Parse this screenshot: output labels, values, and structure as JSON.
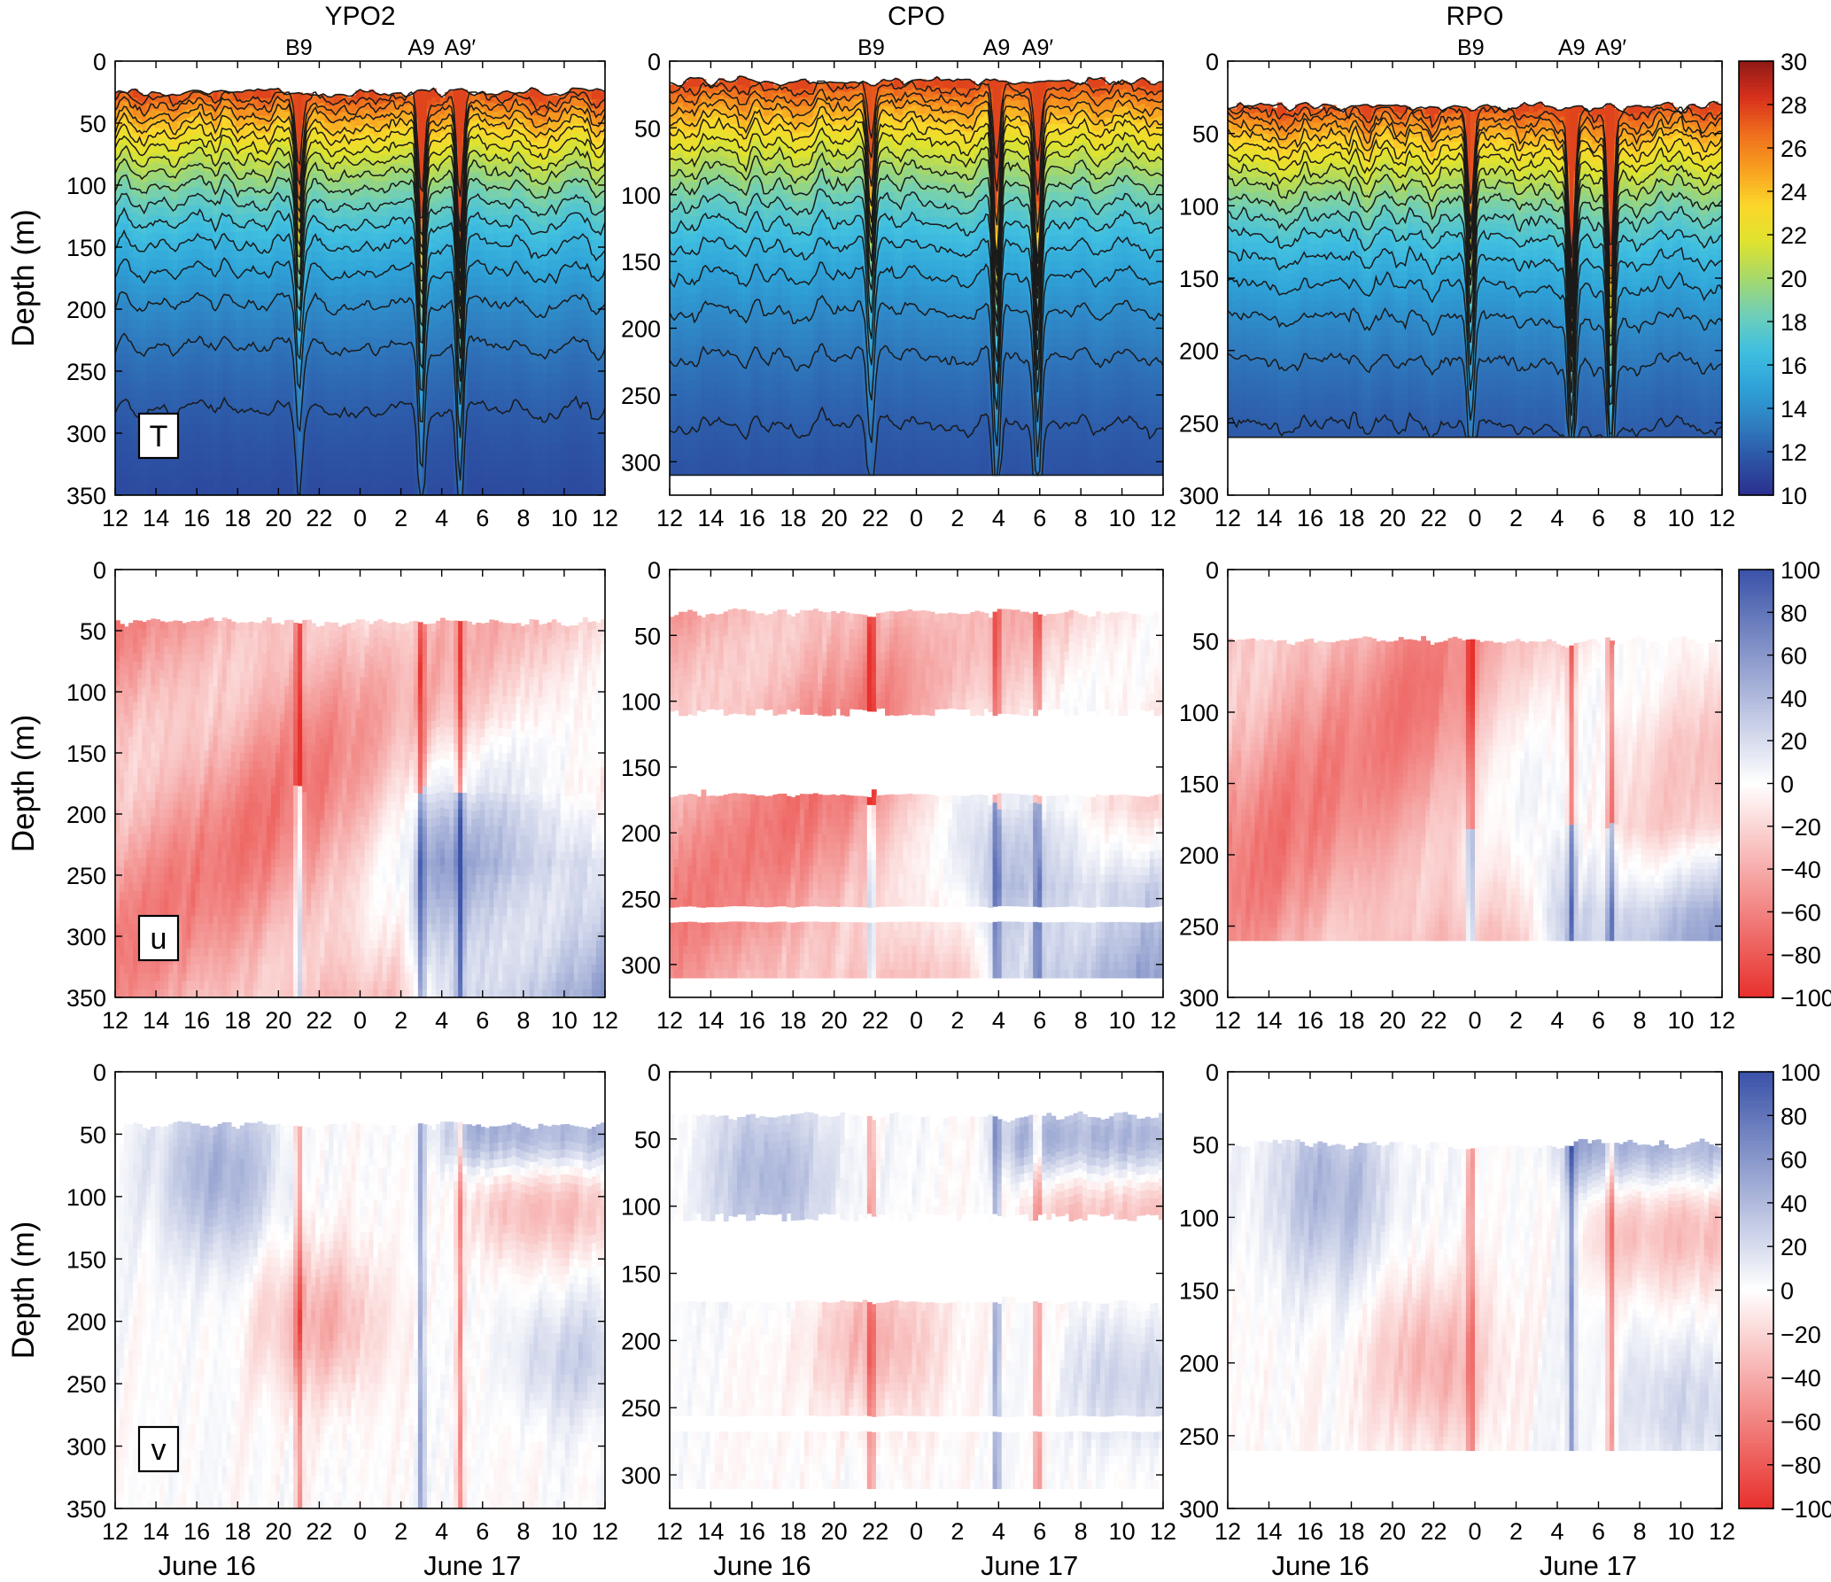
{
  "chart_data": {
    "type": "heatmap",
    "time_ticks": [
      "12",
      "14",
      "16",
      "18",
      "20",
      "22",
      "0",
      "2",
      "4",
      "6",
      "8",
      "10",
      "12"
    ],
    "date_labels": [
      "June 16",
      "June 17"
    ],
    "ylabel": "Depth (m)",
    "columns": [
      {
        "title": "YPO2",
        "events": [
          {
            "label": "B9",
            "t": 21.0
          },
          {
            "label": "A9",
            "t": 27.0
          },
          {
            "label": "A9′",
            "t": 28.9
          }
        ],
        "ylim": [
          0,
          350
        ],
        "yticks": [
          0,
          50,
          100,
          150,
          200,
          250,
          300,
          350
        ],
        "surface_depth": 25,
        "bottom_depth": 350,
        "u_gaps": [],
        "v_gaps": []
      },
      {
        "title": "CPO",
        "events": [
          {
            "label": "B9",
            "t": 21.8
          },
          {
            "label": "A9",
            "t": 27.9
          },
          {
            "label": "A9′",
            "t": 29.9
          }
        ],
        "ylim": [
          0,
          325
        ],
        "yticks": [
          0,
          50,
          100,
          150,
          200,
          250,
          300
        ],
        "surface_depth": 15,
        "bottom_depth": 310,
        "u_gaps": [
          [
            108,
            170
          ],
          [
            258,
            270
          ]
        ],
        "v_gaps": [
          [
            108,
            170
          ],
          [
            258,
            270
          ]
        ]
      },
      {
        "title": "RPO",
        "events": [
          {
            "label": "B9",
            "t": 23.8
          },
          {
            "label": "A9",
            "t": 28.7
          },
          {
            "label": "A9′",
            "t": 30.6
          }
        ],
        "ylim": [
          0,
          300
        ],
        "yticks": [
          0,
          50,
          100,
          150,
          200,
          250,
          300
        ],
        "surface_depth": 32,
        "bottom_depth": 260,
        "u_gaps": [],
        "v_gaps": []
      }
    ],
    "rows": [
      {
        "variable": "T",
        "panel_label": "T",
        "colorbar": {
          "min": 10,
          "max": 30,
          "ticks": [
            "30",
            "28",
            "26",
            "24",
            "22",
            "20",
            "18",
            "16",
            "14",
            "12",
            "10"
          ]
        },
        "contour_levels": [
          11,
          12,
          13,
          14,
          15,
          16,
          17,
          18,
          19,
          20,
          21,
          22,
          23,
          24,
          25,
          26,
          27,
          28,
          29
        ]
      },
      {
        "variable": "u",
        "panel_label": "u",
        "colorbar": {
          "min": -100,
          "max": 100,
          "ticks": [
            "100",
            "80",
            "60",
            "40",
            "20",
            "0",
            "−20",
            "−40",
            "−60",
            "−80",
            "−100"
          ]
        }
      },
      {
        "variable": "v",
        "panel_label": "v",
        "colorbar": {
          "min": -100,
          "max": 100,
          "ticks": [
            "100",
            "80",
            "60",
            "40",
            "20",
            "0",
            "−20",
            "−40",
            "−60",
            "−80",
            "−100"
          ]
        }
      }
    ],
    "colormaps": {
      "temperature": [
        "#2b2f8e",
        "#2d55a6",
        "#2f7fc1",
        "#2fa3d8",
        "#40bfe0",
        "#6fcfb8",
        "#a6d86a",
        "#dfe32e",
        "#fbd72a",
        "#f8a020",
        "#ef6d1d",
        "#d8301c",
        "#8e1a16"
      ],
      "velocity": [
        "#3a52a8",
        "#ffffff",
        "#e8302c"
      ]
    }
  }
}
